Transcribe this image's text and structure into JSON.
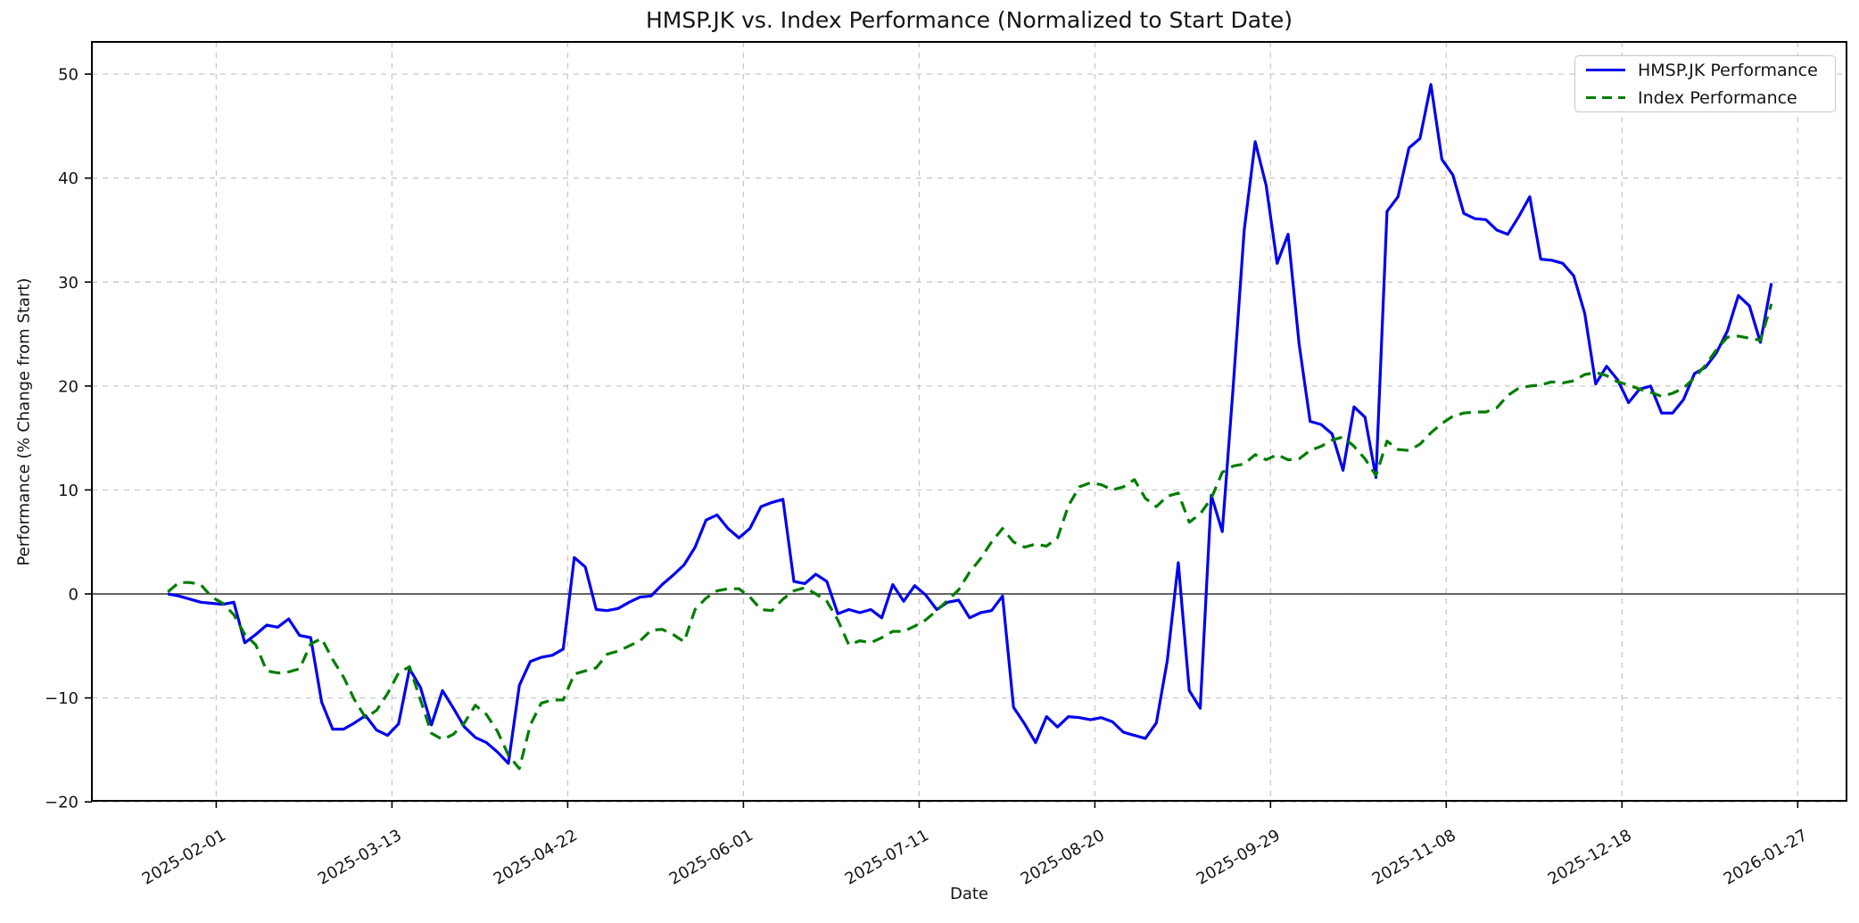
{
  "title": "HMSP.JK vs. Index Performance (Normalized to Start Date)",
  "chart_data": {
    "type": "line",
    "title": "HMSP.JK vs. Index Performance (Normalized to Start Date)",
    "xlabel": "Date",
    "ylabel": "Performance (% Change from Start)",
    "grid": true,
    "zero_line": true,
    "legend_position": "upper right",
    "start_date": "2025-01-21",
    "end_date": "2026-01-21",
    "sample_interval_days": 2.5,
    "x_tick_labels": [
      "2025-02-01",
      "2025-03-13",
      "2025-04-22",
      "2025-06-01",
      "2025-07-11",
      "2025-08-20",
      "2025-09-29",
      "2025-11-08",
      "2025-12-18",
      "2026-01-27"
    ],
    "x_tick_days": [
      11,
      51,
      91,
      131,
      171,
      211,
      251,
      291,
      331,
      371
    ],
    "xlim_days": [
      -17.3,
      382.1
    ],
    "y_ticks": [
      -20,
      -10,
      0,
      10,
      20,
      30,
      40,
      50
    ],
    "y_tick_labels": [
      "−20",
      "−10",
      "0",
      "10",
      "20",
      "30",
      "40",
      "50"
    ],
    "ylim": [
      -19.9,
      53.1
    ],
    "series": [
      {
        "name": "HMSP.JK Performance",
        "color": "#0101ef",
        "style": "solid",
        "values": [
          0,
          -0.2,
          -0.5,
          -0.8,
          -0.9,
          -1.0,
          -0.8,
          -4.7,
          -3.9,
          -3.0,
          -3.2,
          -2.4,
          -4.0,
          -4.2,
          -10.4,
          -13.0,
          -13.0,
          -12.4,
          -11.7,
          -13.1,
          -13.6,
          -12.5,
          -7.2,
          -9.0,
          -12.6,
          -9.3,
          -11.0,
          -12.8,
          -13.8,
          -14.3,
          -15.2,
          -16.3,
          -8.8,
          -6.5,
          -6.1,
          -5.9,
          -5.3,
          3.5,
          2.6,
          -1.5,
          -1.6,
          -1.4,
          -0.8,
          -0.3,
          -0.2,
          0.9,
          1.8,
          2.8,
          4.5,
          7.1,
          7.6,
          6.3,
          5.4,
          6.3,
          8.4,
          8.8,
          9.1,
          1.2,
          1.0,
          1.9,
          1.2,
          -1.9,
          -1.5,
          -1.8,
          -1.5,
          -2.3,
          0.9,
          -0.7,
          0.8,
          -0.1,
          -1.5,
          -0.8,
          -0.6,
          -2.3,
          -1.8,
          -1.6,
          -0.2,
          -10.9,
          -12.5,
          -14.3,
          -11.8,
          -12.8,
          -11.8,
          -11.9,
          -12.1,
          -11.9,
          -12.3,
          -13.3,
          -13.6,
          -13.9,
          -12.4,
          -6.4,
          3.0,
          -9.3,
          -11.0,
          9.5,
          6.0,
          20.0,
          35.0,
          43.5,
          39.3,
          31.8,
          34.6,
          24.0,
          16.6,
          16.3,
          15.4,
          11.9,
          18.0,
          17.0,
          11.2,
          36.8,
          38.2,
          42.9,
          43.8,
          49.0,
          41.8,
          40.3,
          36.6,
          36.1,
          36.0,
          35.0,
          34.6,
          36.3,
          38.2,
          32.2,
          32.1,
          31.8,
          30.6,
          27.0,
          20.2,
          21.9,
          20.6,
          18.4,
          19.7,
          20.0,
          17.4,
          17.4,
          18.7,
          21.2,
          21.8,
          23.2,
          25.3,
          28.7,
          27.7,
          24.2,
          29.9
        ]
      },
      {
        "name": "Index Performance",
        "color": "#007d00",
        "style": "dashed",
        "values": [
          0.2,
          1.1,
          1.1,
          0.9,
          -0.3,
          -0.9,
          -2.0,
          -3.9,
          -4.9,
          -7.4,
          -7.6,
          -7.5,
          -7.2,
          -4.8,
          -4.3,
          -6.3,
          -8.0,
          -10.2,
          -11.9,
          -11.2,
          -9.6,
          -7.6,
          -7.0,
          -10.2,
          -13.4,
          -14.0,
          -13.5,
          -12.4,
          -10.7,
          -11.6,
          -13.2,
          -15.5,
          -16.8,
          -12.6,
          -10.5,
          -10.2,
          -10.2,
          -7.7,
          -7.4,
          -7.1,
          -5.8,
          -5.5,
          -5.0,
          -4.5,
          -3.5,
          -3.4,
          -3.9,
          -4.6,
          -1.5,
          -0.4,
          0.3,
          0.5,
          0.5,
          -0.3,
          -1.5,
          -1.6,
          -0.5,
          0.3,
          0.6,
          0.0,
          -0.7,
          -2.5,
          -4.9,
          -4.5,
          -4.7,
          -4.2,
          -3.6,
          -3.6,
          -3.1,
          -2.5,
          -1.6,
          -0.6,
          0.4,
          2.1,
          3.4,
          5.0,
          6.3,
          5.0,
          4.5,
          4.8,
          4.6,
          5.4,
          8.5,
          10.3,
          10.7,
          10.5,
          10.0,
          10.3,
          11.0,
          9.2,
          8.4,
          9.4,
          9.7,
          6.9,
          7.7,
          9.2,
          11.7,
          12.3,
          12.5,
          13.4,
          12.9,
          13.4,
          12.9,
          13.0,
          13.8,
          14.2,
          14.8,
          15.1,
          14.2,
          13.0,
          11.4,
          14.7,
          13.9,
          13.8,
          14.4,
          15.5,
          16.4,
          17.1,
          17.4,
          17.5,
          17.5,
          17.9,
          19.1,
          19.8,
          20.0,
          20.1,
          20.4,
          20.3,
          20.5,
          21.1,
          21.3,
          21.0,
          20.4,
          20.1,
          19.7,
          19.4,
          19.0,
          19.3,
          19.8,
          20.8,
          22.0,
          23.5,
          24.7,
          24.8,
          24.6,
          24.4,
          27.9
        ]
      }
    ],
    "colors": {
      "hmsp_line": "#0101ef",
      "index_line": "#007d00",
      "grid": "#c9c9c9",
      "background": "#ffffff"
    }
  }
}
